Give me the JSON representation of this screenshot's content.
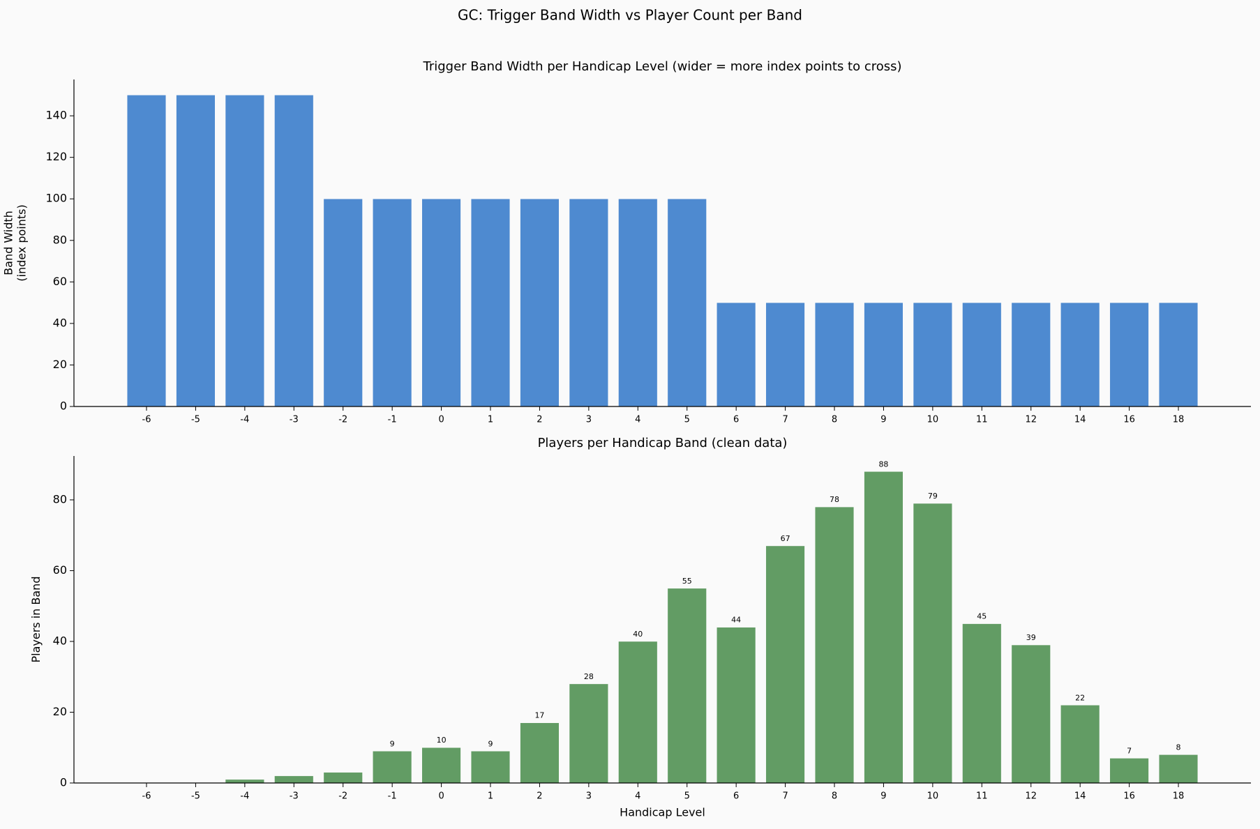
{
  "title": "GC: Trigger Band Width vs Player Count per Band",
  "chart_data": [
    {
      "type": "bar",
      "title": "Trigger Band Width per Handicap Level (wider = more index points to cross)",
      "ylabel": [
        "Band Width",
        "(index points)"
      ],
      "categories": [
        "-6",
        "-5",
        "-4",
        "-3",
        "-2",
        "-1",
        "0",
        "1",
        "2",
        "3",
        "4",
        "5",
        "6",
        "7",
        "8",
        "9",
        "10",
        "11",
        "12",
        "14",
        "16",
        "18"
      ],
      "values": [
        150,
        150,
        150,
        150,
        100,
        100,
        100,
        100,
        100,
        100,
        100,
        100,
        50,
        50,
        50,
        50,
        50,
        50,
        50,
        50,
        50,
        50
      ],
      "color": "#4e8ad0",
      "ylim": [
        0,
        157.5
      ],
      "yticks": [
        0,
        20,
        40,
        60,
        80,
        100,
        120,
        140
      ],
      "grid": false
    },
    {
      "type": "bar",
      "title": "Players per Handicap Band (clean data)",
      "xlabel": "Handicap Level",
      "ylabel": [
        "Players in Band"
      ],
      "categories": [
        "-6",
        "-5",
        "-4",
        "-3",
        "-2",
        "-1",
        "0",
        "1",
        "2",
        "3",
        "4",
        "5",
        "6",
        "7",
        "8",
        "9",
        "10",
        "11",
        "12",
        "14",
        "16",
        "18"
      ],
      "values": [
        0,
        0,
        1,
        2,
        3,
        9,
        10,
        9,
        17,
        28,
        40,
        55,
        44,
        67,
        78,
        88,
        79,
        45,
        39,
        22,
        7,
        8
      ],
      "value_labels": [
        null,
        null,
        null,
        null,
        null,
        "9",
        "10",
        "9",
        "17",
        "28",
        "40",
        "55",
        "44",
        "67",
        "78",
        "88",
        "79",
        "45",
        "39",
        "22",
        "7",
        "8"
      ],
      "color": "#629c64",
      "ylim": [
        0,
        92.4
      ],
      "yticks": [
        0,
        20,
        40,
        60,
        80
      ],
      "grid": false
    }
  ]
}
